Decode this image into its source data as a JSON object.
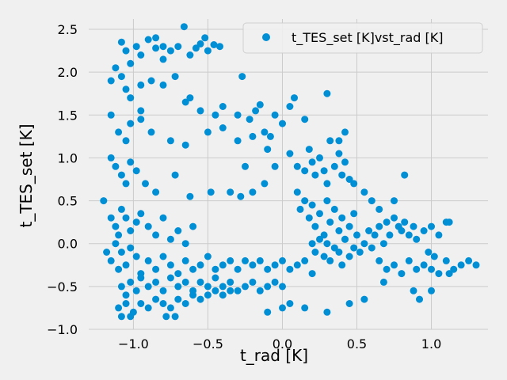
{
  "chart_data": {
    "type": "scatter",
    "xlabel": "t_rad [K]",
    "ylabel": "t_TES_set [K]",
    "xlim": [
      -1.3,
      1.38
    ],
    "ylim": [
      -1.0,
      2.62
    ],
    "xticks": [
      -1.0,
      -0.5,
      0.0,
      0.5,
      1.0
    ],
    "xtick_labels": [
      "−1.0",
      "−0.5",
      "0.0",
      "0.5",
      "1.0"
    ],
    "yticks": [
      -1.0,
      -0.5,
      0.0,
      0.5,
      1.0,
      1.5,
      2.0,
      2.5
    ],
    "ytick_labels": [
      "−1.0",
      "−0.5",
      "0.0",
      "0.5",
      "1.0",
      "1.5",
      "2.0",
      "2.5"
    ],
    "grid": true,
    "legend_position": "top-right",
    "colors": {
      "marker": "#008fd5",
      "grid": "#cbcbcb",
      "background": "#f0f0f0"
    },
    "series": [
      {
        "name": "t_TES_set [K]vst_rad [K]",
        "points": [
          [
            -1.08,
            2.35
          ],
          [
            -1.05,
            2.25
          ],
          [
            -1.02,
            2.1
          ],
          [
            -0.98,
            2.3
          ],
          [
            -0.95,
            2.2
          ],
          [
            -0.9,
            2.38
          ],
          [
            -0.85,
            2.28
          ],
          [
            -0.8,
            2.15
          ],
          [
            -0.75,
            2.25
          ],
          [
            -0.7,
            2.3
          ],
          [
            -0.66,
            2.53
          ],
          [
            -0.62,
            2.2
          ],
          [
            -0.58,
            2.28
          ],
          [
            -0.55,
            2.33
          ],
          [
            -0.52,
            2.4
          ],
          [
            -0.5,
            2.25
          ],
          [
            -0.46,
            2.32
          ],
          [
            -0.42,
            2.3
          ],
          [
            -1.12,
            2.05
          ],
          [
            -1.15,
            1.9
          ],
          [
            -1.08,
            1.95
          ],
          [
            -1.05,
            1.8
          ],
          [
            -1.02,
            1.7
          ],
          [
            -0.95,
            1.85
          ],
          [
            -0.88,
            1.9
          ],
          [
            -0.8,
            1.85
          ],
          [
            -0.72,
            1.95
          ],
          [
            -0.62,
            1.7
          ],
          [
            -0.55,
            1.55
          ],
          [
            -0.45,
            1.5
          ],
          [
            -0.4,
            1.6
          ],
          [
            -0.3,
            1.5
          ],
          [
            -0.27,
            1.95
          ],
          [
            -0.22,
            1.45
          ],
          [
            -0.18,
            1.55
          ],
          [
            -0.15,
            1.62
          ],
          [
            -0.12,
            1.3
          ],
          [
            -0.08,
            1.25
          ],
          [
            -0.05,
            1.5
          ],
          [
            0.0,
            1.4
          ],
          [
            0.05,
            1.6
          ],
          [
            0.08,
            1.7
          ],
          [
            0.15,
            1.45
          ],
          [
            -1.15,
            1.5
          ],
          [
            -1.1,
            1.3
          ],
          [
            -1.05,
            1.2
          ],
          [
            -1.02,
            1.4
          ],
          [
            -0.95,
            1.45
          ],
          [
            -0.88,
            1.3
          ],
          [
            -0.75,
            1.2
          ],
          [
            -0.65,
            1.15
          ],
          [
            -0.5,
            1.3
          ],
          [
            -0.4,
            1.35
          ],
          [
            -0.3,
            1.2
          ],
          [
            -0.2,
            1.25
          ],
          [
            -0.1,
            1.1
          ],
          [
            -1.15,
            1.0
          ],
          [
            -1.12,
            0.9
          ],
          [
            -1.08,
            0.8
          ],
          [
            -1.05,
            0.7
          ],
          [
            -1.02,
            0.95
          ],
          [
            -0.98,
            0.85
          ],
          [
            -0.92,
            0.7
          ],
          [
            -0.85,
            0.6
          ],
          [
            -0.72,
            0.8
          ],
          [
            -0.62,
            0.55
          ],
          [
            -0.48,
            0.6
          ],
          [
            -0.35,
            0.6
          ],
          [
            -0.28,
            0.55
          ],
          [
            -0.2,
            0.6
          ],
          [
            -0.12,
            0.7
          ],
          [
            -0.05,
            0.9
          ],
          [
            -1.2,
            0.5
          ],
          [
            -1.15,
            0.3
          ],
          [
            -1.12,
            0.2
          ],
          [
            -1.1,
            0.1
          ],
          [
            -1.08,
            0.4
          ],
          [
            -1.05,
            0.3
          ],
          [
            -1.02,
            0.15
          ],
          [
            -0.98,
            0.25
          ],
          [
            -0.95,
            0.35
          ],
          [
            -0.9,
            0.2
          ],
          [
            -0.85,
            0.1
          ],
          [
            -0.8,
            0.3
          ],
          [
            -0.75,
            0.05
          ],
          [
            -0.7,
            0.15
          ],
          [
            -0.65,
            0.0
          ],
          [
            -0.6,
            0.2
          ],
          [
            -1.18,
            -0.1
          ],
          [
            -1.15,
            -0.2
          ],
          [
            -1.12,
            0.0
          ],
          [
            -1.1,
            -0.3
          ],
          [
            -1.08,
            -0.1
          ],
          [
            -1.05,
            -0.25
          ],
          [
            -1.02,
            -0.05
          ],
          [
            -0.98,
            -0.15
          ],
          [
            -0.95,
            -0.35
          ],
          [
            -0.9,
            -0.2
          ],
          [
            -0.85,
            -0.3
          ],
          [
            -0.8,
            -0.15
          ],
          [
            -0.75,
            -0.25
          ],
          [
            -0.7,
            -0.35
          ],
          [
            -0.65,
            -0.2
          ],
          [
            -0.6,
            -0.3
          ],
          [
            -0.55,
            -0.25
          ],
          [
            -0.5,
            -0.15
          ],
          [
            -0.45,
            -0.3
          ],
          [
            -0.4,
            -0.25
          ],
          [
            -0.35,
            -0.2
          ],
          [
            -0.3,
            -0.3
          ],
          [
            -0.25,
            -0.2
          ],
          [
            -0.2,
            -0.25
          ],
          [
            -0.15,
            -0.2
          ],
          [
            -0.1,
            -0.3
          ],
          [
            -0.05,
            -0.25
          ],
          [
            0.0,
            -0.2
          ],
          [
            0.05,
            -0.3
          ],
          [
            0.1,
            -0.25
          ],
          [
            0.15,
            -0.2
          ],
          [
            0.2,
            -0.35
          ],
          [
            -1.08,
            -0.5
          ],
          [
            -1.05,
            -0.6
          ],
          [
            -1.02,
            -0.45
          ],
          [
            -0.98,
            -0.55
          ],
          [
            -0.95,
            -0.4
          ],
          [
            -0.9,
            -0.5
          ],
          [
            -0.85,
            -0.45
          ],
          [
            -0.8,
            -0.55
          ],
          [
            -0.75,
            -0.4
          ],
          [
            -0.7,
            -0.5
          ],
          [
            -0.65,
            -0.45
          ],
          [
            -0.6,
            -0.55
          ],
          [
            -0.55,
            -0.45
          ],
          [
            -0.5,
            -0.5
          ],
          [
            -0.45,
            -0.4
          ],
          [
            -0.4,
            -0.5
          ],
          [
            -0.35,
            -0.45
          ],
          [
            -0.3,
            -0.55
          ],
          [
            -0.25,
            -0.5
          ],
          [
            -0.2,
            -0.45
          ],
          [
            -0.15,
            -0.55
          ],
          [
            -0.1,
            -0.5
          ],
          [
            -0.05,
            -0.45
          ],
          [
            0.0,
            -0.5
          ],
          [
            -1.1,
            -0.75
          ],
          [
            -1.05,
            -0.7
          ],
          [
            -1.0,
            -0.8
          ],
          [
            -0.95,
            -0.7
          ],
          [
            -0.9,
            -0.75
          ],
          [
            -0.85,
            -0.65
          ],
          [
            -0.8,
            -0.7
          ],
          [
            -0.75,
            -0.75
          ],
          [
            -0.7,
            -0.65
          ],
          [
            -0.65,
            -0.7
          ],
          [
            -0.6,
            -0.6
          ],
          [
            -0.55,
            -0.65
          ],
          [
            -0.5,
            -0.6
          ],
          [
            -0.45,
            -0.55
          ],
          [
            -0.4,
            -0.6
          ],
          [
            -0.35,
            -0.55
          ],
          [
            -1.08,
            -0.85
          ],
          [
            -1.02,
            -0.85
          ],
          [
            -0.78,
            -0.85
          ],
          [
            -0.72,
            -0.85
          ],
          [
            -0.1,
            -0.8
          ],
          [
            0.0,
            -0.75
          ],
          [
            0.05,
            -0.7
          ],
          [
            0.15,
            -0.75
          ],
          [
            0.3,
            -0.8
          ],
          [
            0.45,
            -0.7
          ],
          [
            0.55,
            -0.65
          ],
          [
            0.68,
            -0.45
          ],
          [
            0.88,
            -0.55
          ],
          [
            0.92,
            -0.65
          ],
          [
            1.0,
            -0.55
          ],
          [
            0.05,
            1.05
          ],
          [
            0.1,
            0.9
          ],
          [
            0.15,
            0.85
          ],
          [
            0.18,
            1.1
          ],
          [
            0.2,
            0.95
          ],
          [
            0.22,
            0.8
          ],
          [
            0.25,
            1.0
          ],
          [
            0.28,
            0.85
          ],
          [
            0.3,
            0.7
          ],
          [
            0.32,
            1.2
          ],
          [
            0.35,
            0.9
          ],
          [
            0.38,
            1.05
          ],
          [
            0.4,
            0.8
          ],
          [
            0.42,
            0.95
          ],
          [
            0.45,
            0.75
          ],
          [
            0.48,
            0.7
          ],
          [
            0.1,
            0.6
          ],
          [
            0.12,
            0.4
          ],
          [
            0.15,
            0.5
          ],
          [
            0.18,
            0.3
          ],
          [
            0.2,
            0.45
          ],
          [
            0.22,
            0.2
          ],
          [
            0.25,
            0.35
          ],
          [
            0.28,
            0.1
          ],
          [
            0.3,
            0.5
          ],
          [
            0.32,
            0.25
          ],
          [
            0.35,
            0.4
          ],
          [
            0.38,
            0.15
          ],
          [
            0.4,
            0.3
          ],
          [
            0.42,
            0.05
          ],
          [
            0.45,
            0.2
          ],
          [
            0.48,
            0.35
          ],
          [
            0.2,
            0.0
          ],
          [
            0.22,
            -0.1
          ],
          [
            0.25,
            0.05
          ],
          [
            0.28,
            -0.15
          ],
          [
            0.3,
            0.0
          ],
          [
            0.32,
            -0.2
          ],
          [
            0.35,
            -0.05
          ],
          [
            0.38,
            -0.1
          ],
          [
            0.4,
            -0.25
          ],
          [
            0.42,
            0.05
          ],
          [
            0.45,
            -0.15
          ],
          [
            0.48,
            -0.05
          ],
          [
            0.5,
            0.1
          ],
          [
            0.52,
            -0.1
          ],
          [
            0.55,
            0.0
          ],
          [
            0.58,
            0.15
          ],
          [
            0.6,
            -0.05
          ],
          [
            0.62,
            0.1
          ],
          [
            0.65,
            0.2
          ],
          [
            0.68,
            0.0
          ],
          [
            0.7,
            0.25
          ],
          [
            0.72,
            0.1
          ],
          [
            0.75,
            0.3
          ],
          [
            0.78,
            0.2
          ],
          [
            0.8,
            0.15
          ],
          [
            0.82,
            0.25
          ],
          [
            0.85,
            0.1
          ],
          [
            0.88,
            0.2
          ],
          [
            0.9,
            0.05
          ],
          [
            0.95,
            0.15
          ],
          [
            1.0,
            0.2
          ],
          [
            1.05,
            0.1
          ],
          [
            1.1,
            0.25
          ],
          [
            1.12,
            0.25
          ],
          [
            0.6,
            0.5
          ],
          [
            0.65,
            0.4
          ],
          [
            0.75,
            0.5
          ],
          [
            0.82,
            0.8
          ],
          [
            0.65,
            -0.2
          ],
          [
            0.7,
            -0.3
          ],
          [
            0.75,
            -0.25
          ],
          [
            0.8,
            -0.35
          ],
          [
            0.85,
            -0.2
          ],
          [
            0.9,
            -0.3
          ],
          [
            0.95,
            -0.25
          ],
          [
            1.0,
            -0.3
          ],
          [
            1.05,
            -0.35
          ],
          [
            1.1,
            -0.2
          ],
          [
            1.15,
            -0.3
          ],
          [
            1.2,
            -0.25
          ],
          [
            1.25,
            -0.2
          ],
          [
            1.3,
            -0.25
          ],
          [
            1.12,
            -0.35
          ],
          [
            0.98,
            -0.1
          ],
          [
            1.02,
            -0.15
          ],
          [
            0.3,
            1.75
          ],
          [
            0.38,
            1.2
          ],
          [
            0.42,
            1.3
          ],
          [
            0.55,
            0.6
          ],
          [
            -0.85,
            2.4
          ],
          [
            -0.8,
            2.3
          ],
          [
            -0.65,
            1.65
          ],
          [
            -0.95,
            1.55
          ],
          [
            -0.25,
            0.9
          ]
        ]
      }
    ]
  }
}
